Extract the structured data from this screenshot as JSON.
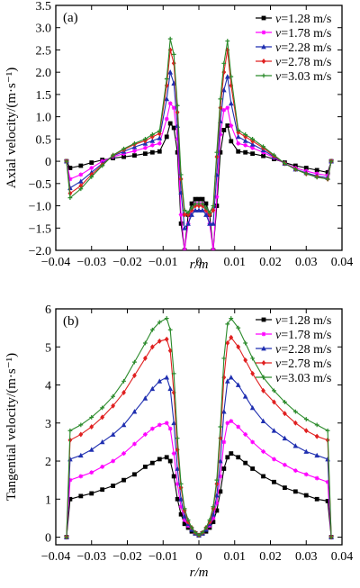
{
  "chart_data": [
    {
      "type": "line",
      "panel_label": "(a)",
      "xlabel": "r/m",
      "ylabel": "Axial velocity/(m·s⁻¹)",
      "xlim": [
        -0.04,
        0.04
      ],
      "ylim": [
        -2.0,
        3.5
      ],
      "xticks": [
        -0.04,
        -0.03,
        -0.02,
        -0.01,
        0,
        0.01,
        0.02,
        0.03,
        0.04
      ],
      "xtick_labels": [
        "−0.04",
        "−0.03",
        "−0.02",
        "−0.01",
        "0",
        "0.01",
        "0.02",
        "0.03",
        "0.04"
      ],
      "yticks": [
        -2.0,
        -1.5,
        -1.0,
        -0.5,
        0,
        0.5,
        1.0,
        1.5,
        2.0,
        2.5,
        3.0,
        3.5
      ],
      "ytick_labels": [
        "−2.0",
        "−1.5",
        "−1.0",
        "−0.5",
        "0",
        "0.5",
        "1.0",
        "1.5",
        "2.0",
        "2.5",
        "3.0",
        "3.5"
      ],
      "legend_position": "top-right",
      "x": [
        -0.037,
        -0.036,
        -0.033,
        -0.03,
        -0.027,
        -0.024,
        -0.021,
        -0.018,
        -0.015,
        -0.013,
        -0.011,
        -0.009,
        -0.008,
        -0.007,
        -0.006,
        -0.005,
        -0.004,
        -0.003,
        -0.002,
        -0.001,
        0.0,
        0.001,
        0.002,
        0.003,
        0.004,
        0.005,
        0.006,
        0.007,
        0.008,
        0.009,
        0.011,
        0.013,
        0.015,
        0.018,
        0.021,
        0.024,
        0.027,
        0.03,
        0.033,
        0.036,
        0.037
      ],
      "series": [
        {
          "name": "v=1.28 m/s",
          "marker": "square",
          "color": "#000000",
          "values": [
            0,
            -0.15,
            -0.1,
            -0.03,
            0.03,
            0.07,
            0.1,
            0.13,
            0.17,
            0.2,
            0.22,
            0.55,
            0.85,
            0.75,
            0.2,
            -1.4,
            -2.0,
            -1.2,
            -0.95,
            -0.85,
            -0.85,
            -0.85,
            -0.95,
            -1.2,
            -2.0,
            -1.0,
            0.2,
            0.7,
            0.8,
            0.45,
            0.22,
            0.2,
            0.17,
            0.12,
            0.05,
            -0.03,
            -0.1,
            -0.15,
            -0.2,
            -0.25,
            0
          ]
        },
        {
          "name": "v=1.78 m/s",
          "marker": "star",
          "color": "#ff00ff",
          "values": [
            0,
            -0.4,
            -0.3,
            -0.15,
            0.0,
            0.1,
            0.17,
            0.23,
            0.3,
            0.36,
            0.4,
            0.95,
            1.3,
            1.2,
            0.5,
            -1.2,
            -2.0,
            -1.4,
            -1.1,
            -0.95,
            -0.95,
            -0.95,
            -1.1,
            -1.4,
            -2.0,
            -0.8,
            0.6,
            1.15,
            1.2,
            0.8,
            0.4,
            0.36,
            0.3,
            0.2,
            0.08,
            -0.05,
            -0.15,
            -0.22,
            -0.28,
            -0.32,
            0
          ]
        },
        {
          "name": "v=2.28 m/s",
          "marker": "triangle",
          "color": "#1f2fb0",
          "values": [
            0,
            -0.6,
            -0.45,
            -0.25,
            -0.05,
            0.12,
            0.22,
            0.32,
            0.4,
            0.46,
            0.52,
            1.4,
            2.0,
            1.75,
            0.8,
            -0.7,
            -1.5,
            -1.4,
            -1.2,
            -1.1,
            -1.1,
            -1.1,
            -1.2,
            -1.4,
            -1.4,
            -0.3,
            0.9,
            1.6,
            1.9,
            1.3,
            0.55,
            0.46,
            0.38,
            0.25,
            0.1,
            -0.05,
            -0.18,
            -0.26,
            -0.33,
            -0.37,
            0
          ]
        },
        {
          "name": "v=2.78 m/s",
          "marker": "diamond",
          "color": "#e02020",
          "values": [
            0,
            -0.72,
            -0.55,
            -0.3,
            -0.08,
            0.13,
            0.26,
            0.38,
            0.46,
            0.55,
            0.62,
            1.7,
            2.5,
            2.2,
            1.1,
            -0.4,
            -1.2,
            -1.2,
            -1.1,
            -1.0,
            -1.0,
            -1.0,
            -1.1,
            -1.2,
            -1.1,
            0.1,
            1.2,
            2.0,
            2.5,
            1.7,
            0.65,
            0.55,
            0.45,
            0.3,
            0.12,
            -0.05,
            -0.18,
            -0.28,
            -0.35,
            -0.4,
            0
          ]
        },
        {
          "name": "v=3.03 m/s",
          "marker": "plus",
          "color": "#2a8a2a",
          "values": [
            0,
            -0.82,
            -0.62,
            -0.35,
            -0.1,
            0.14,
            0.28,
            0.4,
            0.5,
            0.6,
            0.68,
            1.85,
            2.75,
            2.4,
            1.25,
            -0.3,
            -1.1,
            -1.15,
            -1.05,
            -0.95,
            -0.95,
            -0.95,
            -1.05,
            -1.15,
            -1.0,
            0.2,
            1.4,
            2.2,
            2.7,
            1.9,
            0.7,
            0.6,
            0.5,
            0.33,
            0.14,
            -0.05,
            -0.18,
            -0.28,
            -0.36,
            -0.4,
            0
          ]
        }
      ]
    },
    {
      "type": "line",
      "panel_label": "(b)",
      "xlabel": "r/m",
      "ylabel": "Tangential velocity/(m·s⁻¹)",
      "xlim": [
        -0.04,
        0.04
      ],
      "ylim": [
        -0.2,
        6.0
      ],
      "xticks": [
        -0.04,
        -0.03,
        -0.02,
        -0.01,
        0,
        0.01,
        0.02,
        0.03,
        0.04
      ],
      "xtick_labels": [
        "−0.04",
        "−0.03",
        "−0.02",
        "−0.01",
        "0",
        "0.01",
        "0.02",
        "0.03",
        "0.04"
      ],
      "yticks": [
        0,
        1,
        2,
        3,
        4,
        5,
        6
      ],
      "ytick_labels": [
        "0",
        "1",
        "2",
        "3",
        "4",
        "5",
        "6"
      ],
      "legend_position": "top-right",
      "x": [
        -0.037,
        -0.036,
        -0.033,
        -0.03,
        -0.027,
        -0.024,
        -0.021,
        -0.018,
        -0.015,
        -0.013,
        -0.011,
        -0.009,
        -0.008,
        -0.007,
        -0.006,
        -0.005,
        -0.004,
        -0.003,
        -0.002,
        -0.001,
        0.0,
        0.001,
        0.002,
        0.003,
        0.004,
        0.005,
        0.006,
        0.007,
        0.008,
        0.009,
        0.011,
        0.013,
        0.015,
        0.018,
        0.021,
        0.024,
        0.027,
        0.03,
        0.033,
        0.036,
        0.037
      ],
      "series": [
        {
          "name": "v=1.28 m/s",
          "marker": "square",
          "color": "#000000",
          "values": [
            0,
            1.0,
            1.08,
            1.15,
            1.25,
            1.35,
            1.5,
            1.65,
            1.85,
            1.95,
            2.05,
            2.1,
            2.0,
            1.6,
            1.0,
            0.6,
            0.35,
            0.25,
            0.15,
            0.1,
            0.05,
            0.1,
            0.15,
            0.25,
            0.4,
            0.7,
            1.2,
            1.8,
            2.1,
            2.2,
            2.1,
            1.95,
            1.8,
            1.6,
            1.45,
            1.3,
            1.2,
            1.1,
            1.0,
            0.95,
            0
          ]
        },
        {
          "name": "v=1.78 m/s",
          "marker": "star",
          "color": "#ff00ff",
          "values": [
            0,
            1.5,
            1.6,
            1.7,
            1.85,
            2.0,
            2.2,
            2.45,
            2.7,
            2.85,
            2.95,
            3.0,
            2.85,
            2.2,
            1.4,
            0.8,
            0.45,
            0.3,
            0.2,
            0.1,
            0.05,
            0.1,
            0.2,
            0.3,
            0.5,
            0.9,
            1.6,
            2.5,
            3.0,
            3.05,
            2.9,
            2.7,
            2.5,
            2.25,
            2.05,
            1.9,
            1.75,
            1.65,
            1.55,
            1.45,
            0
          ]
        },
        {
          "name": "v=2.28 m/s",
          "marker": "triangle",
          "color": "#1f2fb0",
          "values": [
            0,
            2.05,
            2.15,
            2.3,
            2.5,
            2.7,
            2.95,
            3.3,
            3.65,
            3.9,
            4.1,
            4.2,
            3.9,
            3.0,
            1.8,
            1.0,
            0.55,
            0.35,
            0.2,
            0.1,
            0.05,
            0.1,
            0.2,
            0.35,
            0.6,
            1.1,
            2.0,
            3.3,
            4.1,
            4.2,
            4.0,
            3.7,
            3.4,
            3.05,
            2.8,
            2.6,
            2.4,
            2.25,
            2.15,
            2.05,
            0
          ]
        },
        {
          "name": "v=2.78 m/s",
          "marker": "diamond",
          "color": "#e02020",
          "values": [
            0,
            2.55,
            2.7,
            2.9,
            3.15,
            3.45,
            3.8,
            4.25,
            4.7,
            5.0,
            5.15,
            5.2,
            4.9,
            3.8,
            2.3,
            1.3,
            0.7,
            0.4,
            0.25,
            0.12,
            0.05,
            0.12,
            0.25,
            0.4,
            0.75,
            1.4,
            2.6,
            4.2,
            5.1,
            5.25,
            5.0,
            4.65,
            4.3,
            3.85,
            3.55,
            3.25,
            3.0,
            2.8,
            2.65,
            2.55,
            0
          ]
        },
        {
          "name": "v=3.03 m/s",
          "marker": "plus",
          "color": "#2a8a2a",
          "values": [
            0,
            2.8,
            2.95,
            3.15,
            3.4,
            3.7,
            4.1,
            4.6,
            5.1,
            5.45,
            5.65,
            5.75,
            5.45,
            4.3,
            2.6,
            1.4,
            0.75,
            0.45,
            0.25,
            0.12,
            0.05,
            0.12,
            0.25,
            0.45,
            0.8,
            1.5,
            2.9,
            4.7,
            5.6,
            5.75,
            5.5,
            5.1,
            4.7,
            4.2,
            3.85,
            3.55,
            3.3,
            3.1,
            2.95,
            2.8,
            0
          ]
        }
      ]
    }
  ]
}
